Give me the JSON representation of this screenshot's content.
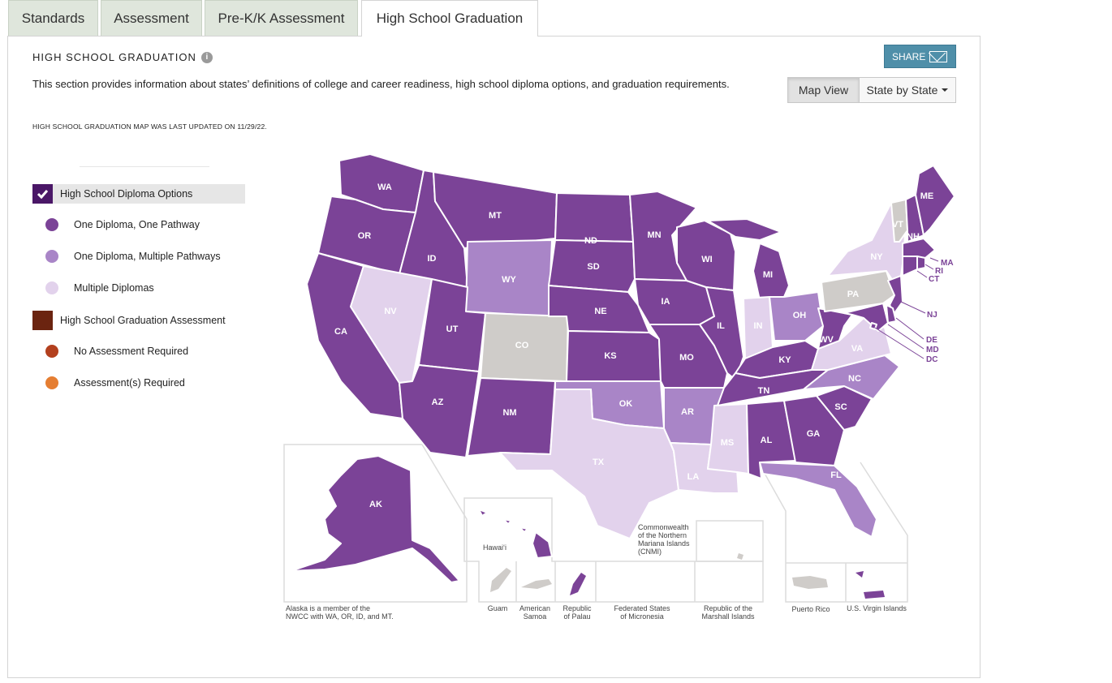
{
  "tabs": [
    {
      "label": "Standards"
    },
    {
      "label": "Assessment"
    },
    {
      "label": "Pre-K/K Assessment"
    },
    {
      "label": "High School Graduation"
    }
  ],
  "section": {
    "title": "HIGH SCHOOL GRADUATION",
    "description": "This section provides information about states’ definitions of college and career readiness, high school diploma options, and graduation requirements.",
    "updated": "HIGH SCHOOL GRADUATION MAP WAS LAST UPDATED ON 11/29/22."
  },
  "share": {
    "label": "SHARE",
    "icon": "envelope-icon"
  },
  "view_toggle": {
    "map_view": "Map View",
    "state_by_state": "State by State"
  },
  "legend": {
    "diploma_header": "High School Diploma Options",
    "diploma_items": [
      {
        "label": "One Diploma, One Pathway",
        "color": "#7b4397"
      },
      {
        "label": "One Diploma, Multiple Pathways",
        "color": "#a985c7"
      },
      {
        "label": "Multiple Diplomas",
        "color": "#e2d2ec"
      }
    ],
    "assessment_header": "High School Graduation Assessment",
    "assessment_items": [
      {
        "label": "No Assessment Required",
        "color": "#b3401e"
      },
      {
        "label": "Assessment(s) Required",
        "color": "#e57e32"
      }
    ],
    "header_colors": {
      "diploma": "#4a1767",
      "assessment": "#6b2410"
    }
  },
  "colors": {
    "dark": "#7b4397",
    "medium": "#a985c7",
    "light": "#e2d2ec",
    "none": "#cfccc9"
  },
  "states": {
    "WA": "dark",
    "OR": "dark",
    "CA": "dark",
    "ID": "dark",
    "NV": "light",
    "MT": "dark",
    "WY": "medium",
    "UT": "dark",
    "AZ": "dark",
    "CO": "none",
    "NM": "dark",
    "ND": "dark",
    "SD": "dark",
    "NE": "dark",
    "KS": "dark",
    "OK": "medium",
    "TX": "light",
    "MN": "dark",
    "IA": "dark",
    "MO": "dark",
    "AR": "medium",
    "LA": "light",
    "WI": "dark",
    "IL": "dark",
    "MI": "dark",
    "IN": "light",
    "OH": "medium",
    "KY": "dark",
    "TN": "dark",
    "MS": "light",
    "AL": "dark",
    "GA": "dark",
    "FL": "medium",
    "SC": "dark",
    "NC": "medium",
    "VA": "light",
    "WV": "dark",
    "PA": "none",
    "NY": "light",
    "VT": "none",
    "NH": "dark",
    "ME": "dark",
    "MA": "dark",
    "RI": "dark",
    "CT": "dark",
    "NJ": "dark",
    "DE": "dark",
    "MD": "dark",
    "DC": "dark",
    "AK": "dark",
    "HI": "dark"
  },
  "east_labels": [
    "MA",
    "RI",
    "CT",
    "NJ",
    "DE",
    "MD",
    "DC"
  ],
  "territories": {
    "cnmi_label": "Commonwealth of the Northern Mariana Islands (CNMI)",
    "hawaii_label": "Hawai‘i",
    "alaska_note": "Alaska is a member of the NWCC with WA, OR, ID, and MT.",
    "guam": "Guam",
    "american_samoa": "American Samoa",
    "palau": "Republic of Palau",
    "micronesia": "Federated States of Micronesia",
    "marshall": "Republic of the Marshall Islands",
    "puerto_rico": "Puerto Rico",
    "usvi": "U.S. Virgin Islands"
  }
}
